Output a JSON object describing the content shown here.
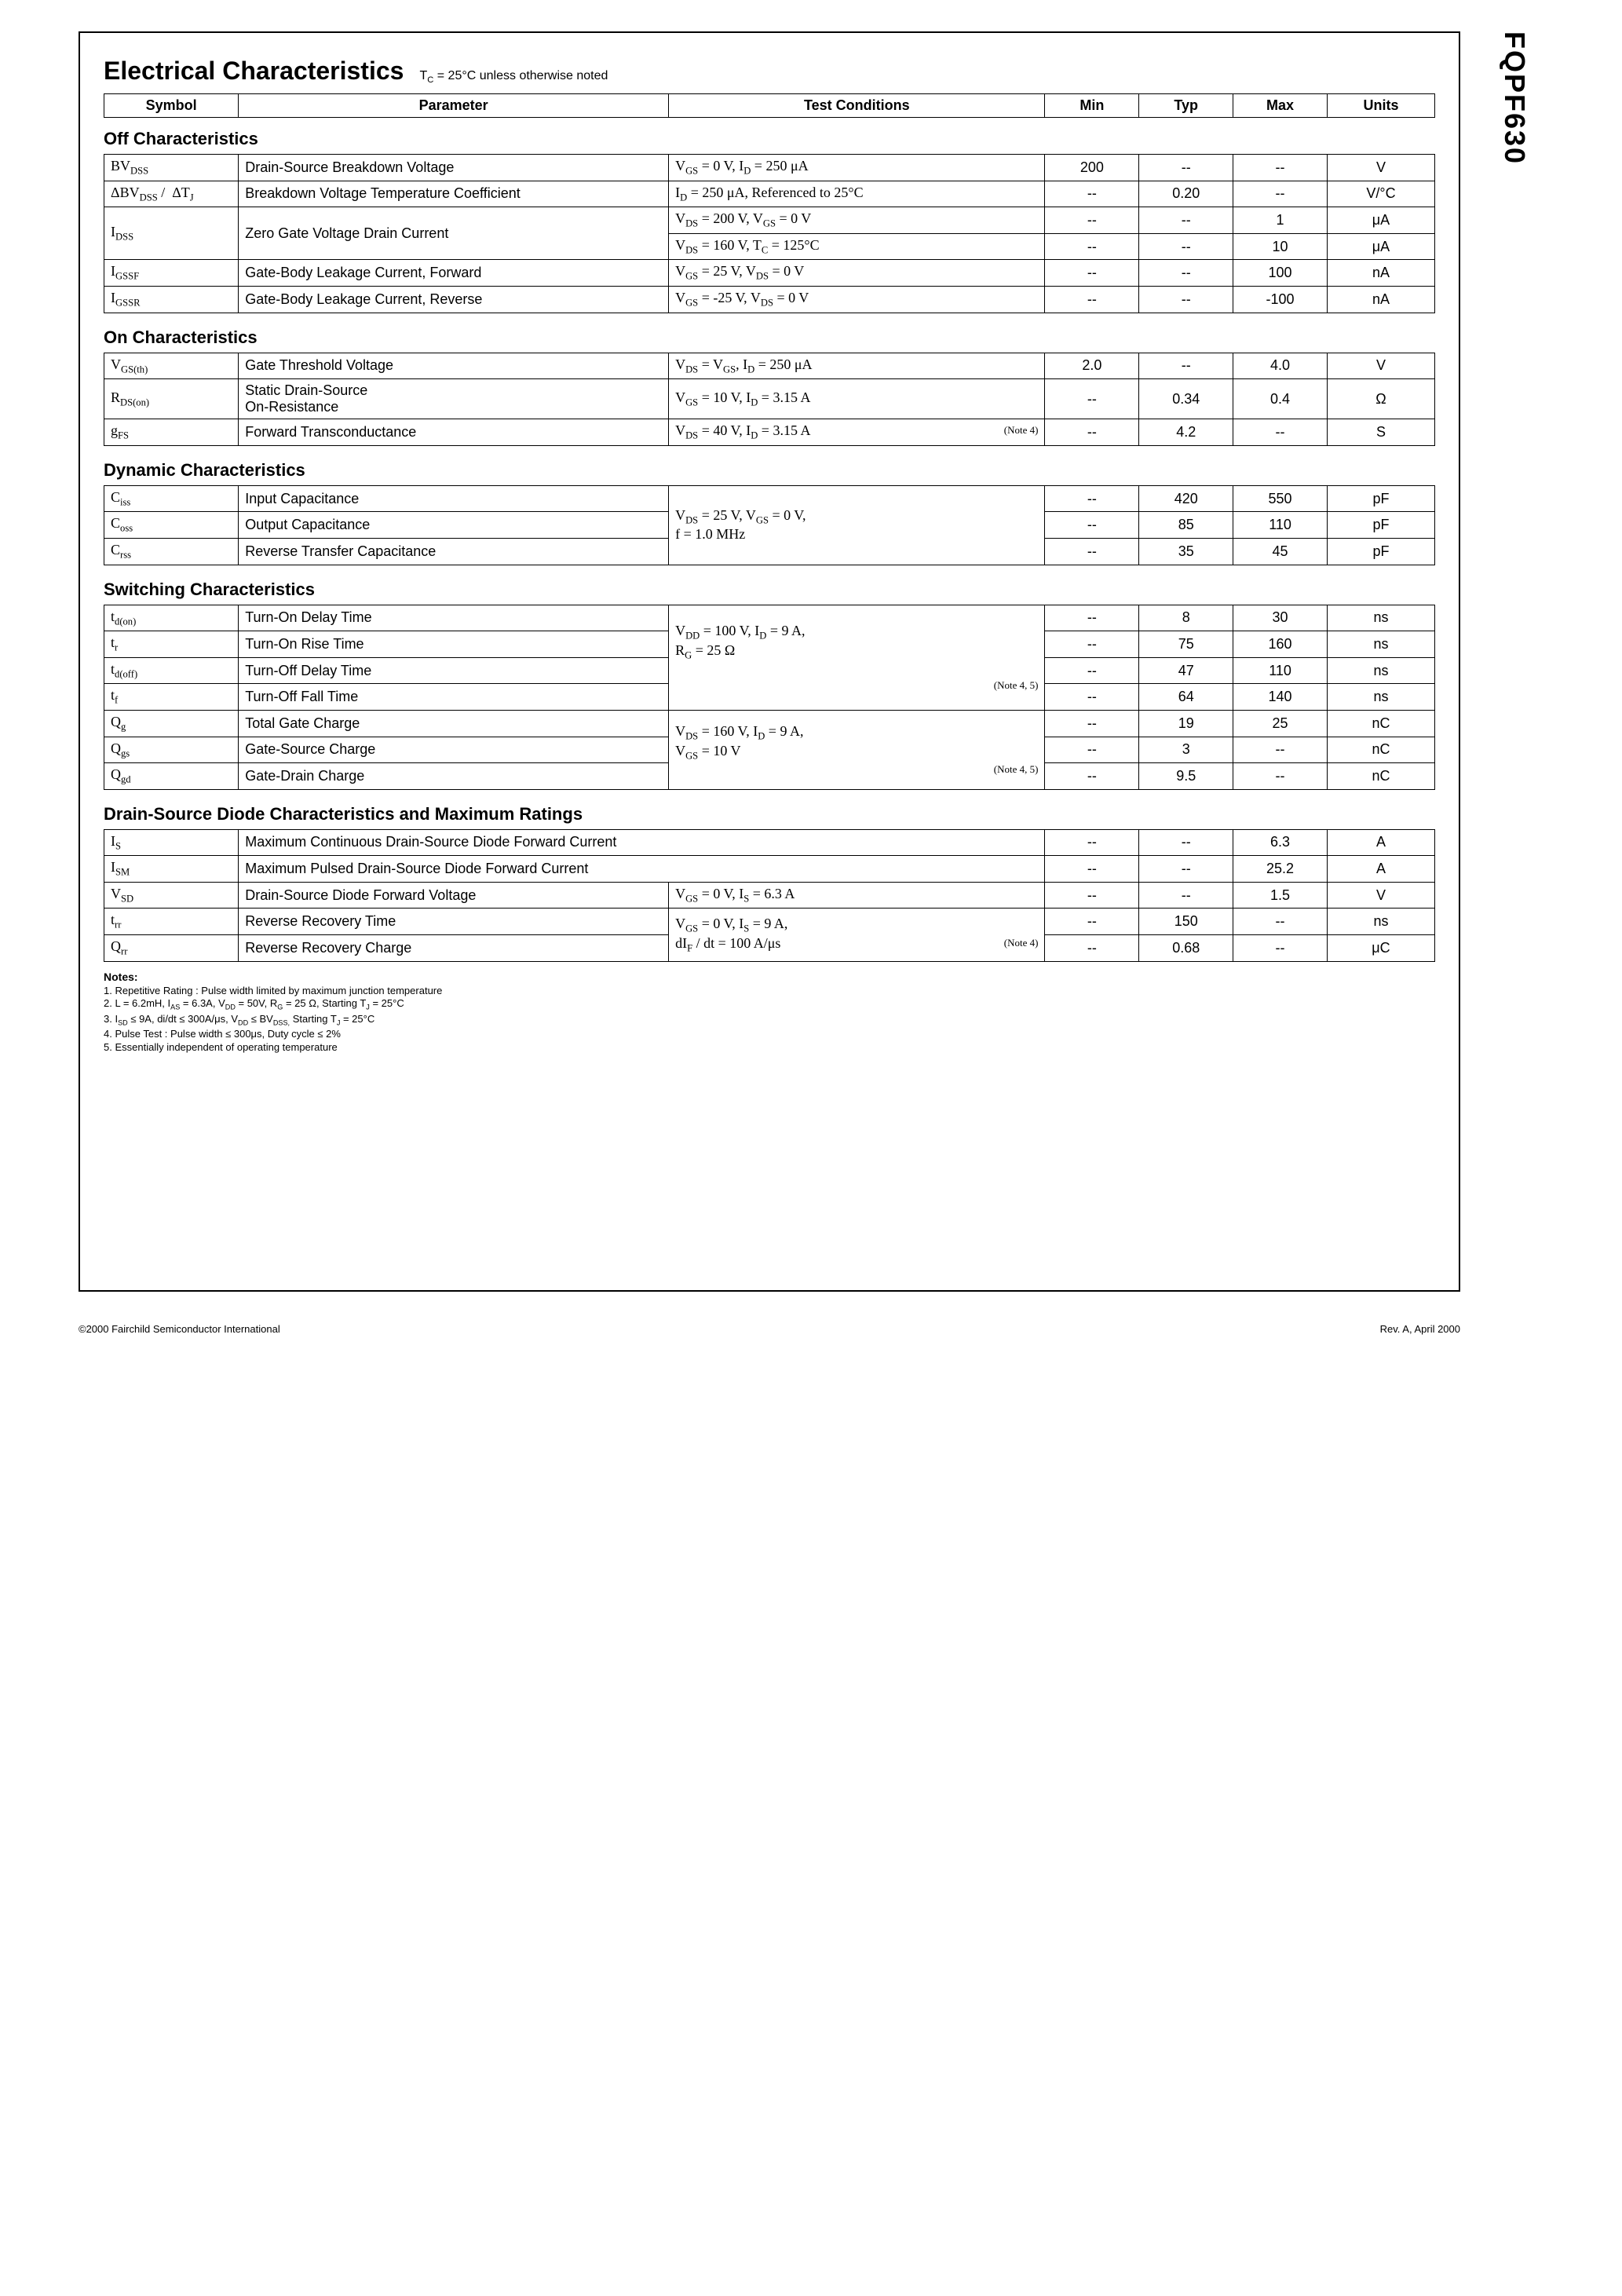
{
  "side_label": "FQPF630",
  "title": "Electrical Characteristics",
  "title_cond": "T_C = 25°C unless otherwise noted",
  "header": {
    "symbol": "Symbol",
    "parameter": "Parameter",
    "cond": "Test Conditions",
    "min": "Min",
    "typ": "Typ",
    "max": "Max",
    "units": "Units"
  },
  "sections": {
    "off": "Off Characteristics",
    "on": "On Characteristics",
    "dyn": "Dynamic Characteristics",
    "sw": "Switching Characteristics",
    "dsd": "Drain-Source Diode Characteristics and Maximum Ratings"
  },
  "off_rows": [
    {
      "sym": "BV<sub>DSS</sub>",
      "param": "Drain-Source Breakdown Voltage",
      "cond": "V<sub>GS</sub> = 0 V, I<sub>D</sub> = 250 μA",
      "min": "200",
      "typ": "--",
      "max": "--",
      "unit": "V"
    },
    {
      "sym": "ΔBV<sub>DSS</sub> /&nbsp;&nbsp;ΔT<sub>J</sub>",
      "param": "Breakdown Voltage Temperature Coefficient",
      "cond": "I<sub>D</sub> = 250 μA, Referenced to 25°C",
      "min": "--",
      "typ": "0.20",
      "max": "--",
      "unit": "V/°C"
    },
    {
      "sym": "I<sub>DSS</sub>",
      "param": "Zero Gate Voltage Drain Current",
      "cond": "V<sub>DS</sub> = 200 V, V<sub>GS</sub> = 0 V",
      "min": "--",
      "typ": "--",
      "max": "1",
      "unit": "μA",
      "rowspan_sym": 2,
      "rowspan_param": 2
    },
    {
      "cond": "V<sub>DS</sub> = 160 V, T<sub>C</sub> = 125°C",
      "min": "--",
      "typ": "--",
      "max": "10",
      "unit": "μA",
      "cont": true
    },
    {
      "sym": "I<sub>GSSF</sub>",
      "param": "Gate-Body Leakage Current, Forward",
      "cond": "V<sub>GS</sub> = 25 V, V<sub>DS</sub> = 0 V",
      "min": "--",
      "typ": "--",
      "max": "100",
      "unit": "nA"
    },
    {
      "sym": "I<sub>GSSR</sub>",
      "param": "Gate-Body Leakage Current, Reverse",
      "cond": "V<sub>GS</sub> = -25 V, V<sub>DS</sub> = 0 V",
      "min": "--",
      "typ": "--",
      "max": "-100",
      "unit": "nA"
    }
  ],
  "on_rows": [
    {
      "sym": "V<sub>GS(th)</sub>",
      "param": "Gate Threshold Voltage",
      "cond": "V<sub>DS</sub> = V<sub>GS</sub>, I<sub>D</sub> = 250 μA",
      "min": "2.0",
      "typ": "--",
      "max": "4.0",
      "unit": "V"
    },
    {
      "sym": "R<sub>DS(on)</sub>",
      "param": "Static Drain-Source<br>On-Resistance",
      "cond": "V<sub>GS</sub> = 10 V, I<sub>D</sub> = 3.15 A",
      "min": "--",
      "typ": "0.34",
      "max": "0.4",
      "unit": "Ω"
    },
    {
      "sym": "g<sub>FS</sub>",
      "param": "Forward Transconductance",
      "cond": "V<sub>DS</sub> = 40 V, I<sub>D</sub> = 3.15 A <span class=\"note-ref\">(Note 4)</span>",
      "min": "--",
      "typ": "4.2",
      "max": "--",
      "unit": "S"
    }
  ],
  "dyn_rows": [
    {
      "sym": "C<sub>iss</sub>",
      "param": "Input Capacitance",
      "cond": "V<sub>DS</sub> = 25 V, V<sub>GS</sub> = 0 V,<br>f = 1.0 MHz",
      "min": "--",
      "typ": "420",
      "max": "550",
      "unit": "pF",
      "rowspan_cond": 3
    },
    {
      "sym": "C<sub>oss</sub>",
      "param": "Output Capacitance",
      "min": "--",
      "typ": "85",
      "max": "110",
      "unit": "pF",
      "cont_cond": true
    },
    {
      "sym": "C<sub>rss</sub>",
      "param": "Reverse Transfer Capacitance",
      "min": "--",
      "typ": "35",
      "max": "45",
      "unit": "pF",
      "cont_cond": true
    }
  ],
  "sw_rows": [
    {
      "sym": "t<sub>d(on)</sub>",
      "param": "Turn-On Delay Time",
      "cond": "V<sub>DD</sub> = 100 V, I<sub>D</sub> = 9 A,<br>R<sub>G</sub> = 25 Ω<br><br><span class=\"note-ref\">(Note 4, 5)</span>",
      "min": "--",
      "typ": "8",
      "max": "30",
      "unit": "ns",
      "rowspan_cond": 4
    },
    {
      "sym": "t<sub>r</sub>",
      "param": "Turn-On Rise Time",
      "min": "--",
      "typ": "75",
      "max": "160",
      "unit": "ns",
      "cont_cond": true
    },
    {
      "sym": "t<sub>d(off)</sub>",
      "param": "Turn-Off Delay Time",
      "min": "--",
      "typ": "47",
      "max": "110",
      "unit": "ns",
      "cont_cond": true
    },
    {
      "sym": "t<sub>f</sub>",
      "param": "Turn-Off Fall Time",
      "min": "--",
      "typ": "64",
      "max": "140",
      "unit": "ns",
      "cont_cond": true
    },
    {
      "sym": "Q<sub>g</sub>",
      "param": "Total Gate Charge",
      "cond": "V<sub>DS</sub> = 160 V, I<sub>D</sub> = 9 A,<br>V<sub>GS</sub> = 10 V<br><span class=\"note-ref\">(Note 4, 5)</span>",
      "min": "--",
      "typ": "19",
      "max": "25",
      "unit": "nC",
      "rowspan_cond": 3
    },
    {
      "sym": "Q<sub>gs</sub>",
      "param": "Gate-Source Charge",
      "min": "--",
      "typ": "3",
      "max": "--",
      "unit": "nC",
      "cont_cond": true
    },
    {
      "sym": "Q<sub>gd</sub>",
      "param": "Gate-Drain Charge",
      "min": "--",
      "typ": "9.5",
      "max": "--",
      "unit": "nC",
      "cont_cond": true
    }
  ],
  "dsd_rows": [
    {
      "sym": "I<sub>S</sub>",
      "param": "Maximum Continuous Drain-Source Diode Forward Current",
      "colspan_param_cond": true,
      "min": "--",
      "typ": "--",
      "max": "6.3",
      "unit": "A"
    },
    {
      "sym": "I<sub>SM</sub>",
      "param": "Maximum Pulsed Drain-Source Diode Forward Current",
      "colspan_param_cond": true,
      "min": "--",
      "typ": "--",
      "max": "25.2",
      "unit": "A"
    },
    {
      "sym": "V<sub>SD</sub>",
      "param": "Drain-Source Diode Forward Voltage",
      "cond": "V<sub>GS</sub> = 0 V, I<sub>S</sub> = 6.3 A",
      "min": "--",
      "typ": "--",
      "max": "1.5",
      "unit": "V"
    },
    {
      "sym": "t<sub>rr</sub>",
      "param": "Reverse Recovery Time",
      "cond": "V<sub>GS</sub> = 0 V, I<sub>S</sub> = 9 A,<br>dI<sub>F</sub> / dt = 100 A/μs <span class=\"note-ref\">(Note 4)</span>",
      "min": "--",
      "typ": "150",
      "max": "--",
      "unit": "ns",
      "rowspan_cond": 2
    },
    {
      "sym": "Q<sub>rr</sub>",
      "param": "Reverse Recovery Charge",
      "min": "--",
      "typ": "0.68",
      "max": "--",
      "unit": "μC",
      "cont_cond": true
    }
  ],
  "notes_title": "Notes:",
  "notes": [
    "1. Repetitive Rating : Pulse width limited by maximum junction temperature",
    "2. L = 6.2mH, I<sub>AS</sub> = 6.3A, V<sub>DD</sub> = 50V, R<sub>G</sub> = 25 Ω, Starting  T<sub>J</sub> = 25°C",
    "3. I<sub>SD</sub> ≤ 9A, di/dt ≤ 300A/μs, V<sub>DD</sub> ≤ BV<sub>DSS,</sub> Starting  T<sub>J</sub> = 25°C",
    "4. Pulse Test : Pulse width ≤ 300μs, Duty cycle ≤ 2%",
    "5. Essentially independent of operating temperature"
  ],
  "footer_left": "©2000 Fairchild Semiconductor International",
  "footer_right": "Rev. A, April 2000"
}
